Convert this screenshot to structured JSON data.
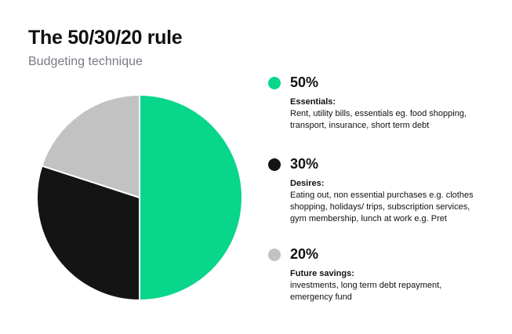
{
  "chart_data": {
    "type": "pie",
    "title": "The 50/30/20 rule",
    "subtitle": "Budgeting technique",
    "slices": [
      {
        "name": "Essentials",
        "value": 50,
        "label": "50%",
        "color": "#08d68b",
        "category": "Essentials:",
        "description": "Rent, utility bills, essentials eg. food shopping, transport, insurance, short term debt"
      },
      {
        "name": "Desires",
        "value": 30,
        "label": "30%",
        "color": "#141414",
        "category": "Desires:",
        "description": "Eating out, non essential purchases e.g. clothes shopping, holidays/ trips, subscription services, gym membership, lunch at work e.g. Pret"
      },
      {
        "name": "Future savings",
        "value": 20,
        "label": "20%",
        "color": "#c2c2c2",
        "category": "Future savings:",
        "description": "investments, long term debt repayment, emergency fund"
      }
    ],
    "legend_position": "right"
  }
}
